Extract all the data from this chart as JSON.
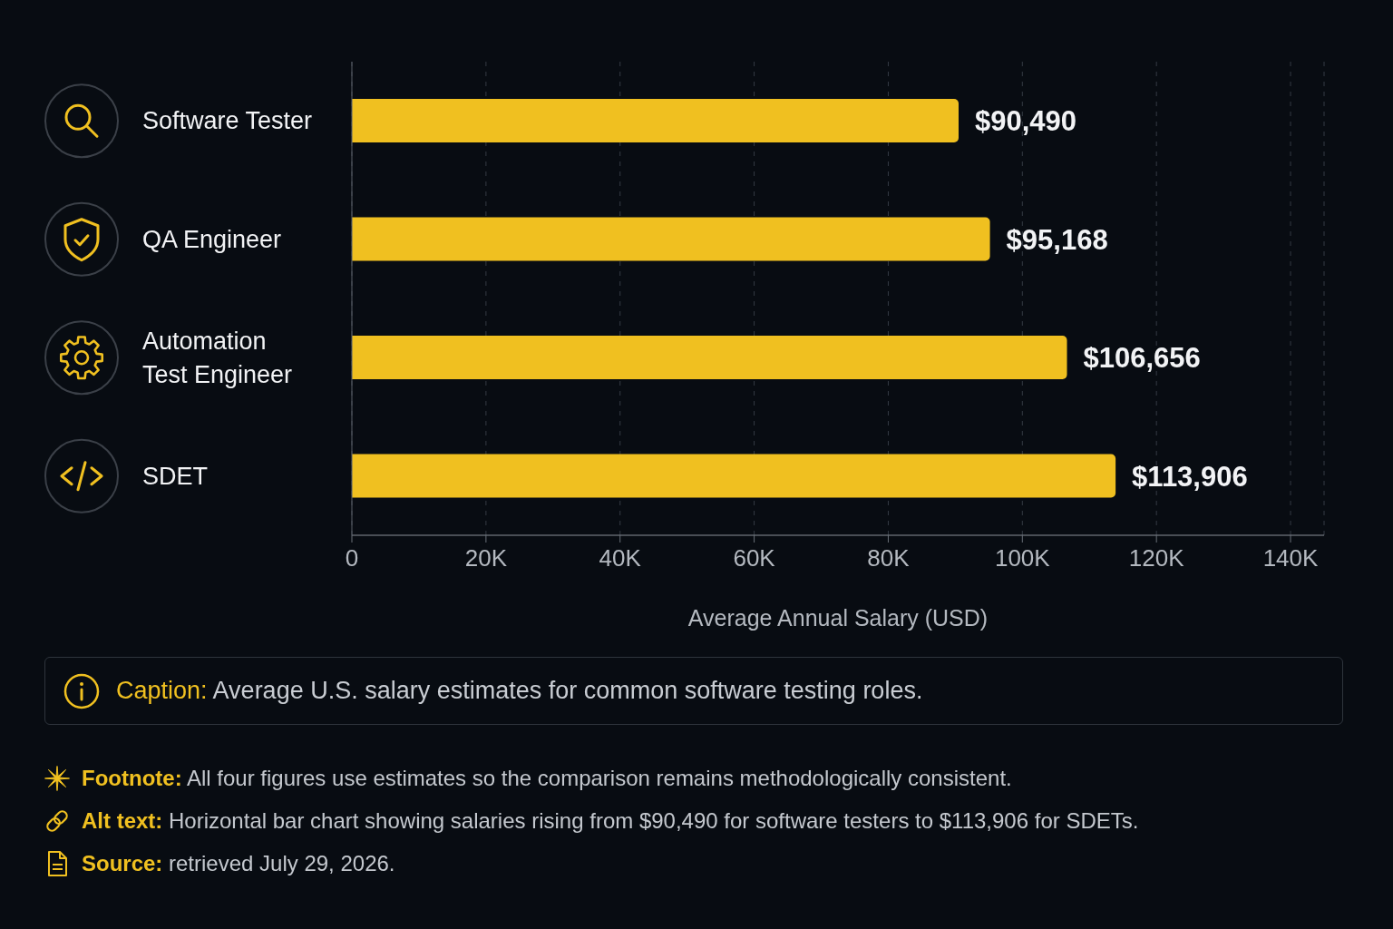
{
  "chart_data": {
    "type": "bar",
    "orientation": "horizontal",
    "categories": [
      "Software Tester",
      "QA Engineer",
      "Automation Test Engineer",
      "SDET"
    ],
    "values": [
      90490,
      95168,
      106656,
      113906
    ],
    "value_labels": [
      "$90,490",
      "$95,168",
      "$106,656",
      "$113,906"
    ],
    "color": "#f0c020",
    "xlabel": "Average Annual Salary (USD)",
    "xlim": [
      0,
      145000
    ],
    "xticks": [
      0,
      {
        "value": 20000,
        "label": "20K"
      },
      {
        "value": 40000,
        "label": "40K"
      },
      {
        "value": 60000,
        "label": "60K"
      },
      {
        "value": 80000,
        "label": "80K"
      },
      {
        "value": 100000,
        "label": "100K"
      },
      {
        "value": 120000,
        "label": "120K"
      },
      {
        "value": 140000,
        "label": "140K"
      }
    ],
    "grid": "x",
    "annotations": [
      "Caption: Average U.S. salary estimates for common software testing roles.",
      "Footnote: All four figures use estimates so the comparison remains methodologically consistent.",
      "Alt text: Horizontal bar chart showing salaries rising from $90,490 for software testers to $113,906 for SDETs.",
      "Source: retrieved July 29, 2026."
    ]
  }
}
